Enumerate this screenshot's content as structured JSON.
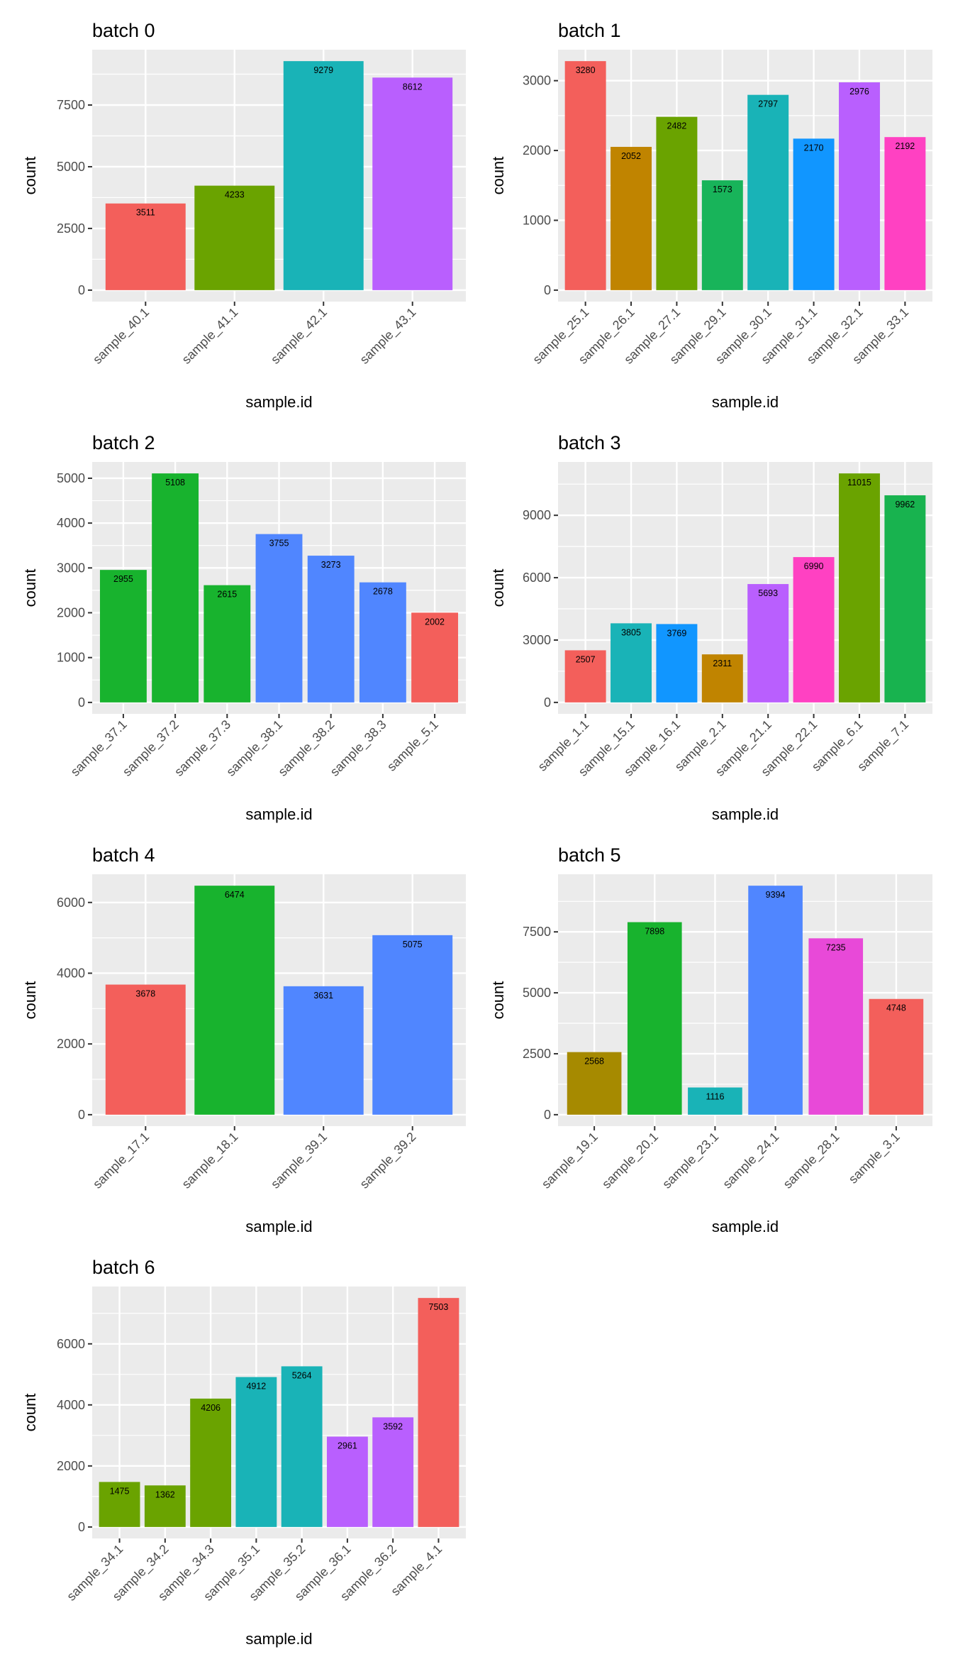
{
  "chart_data": [
    {
      "type": "bar",
      "title": "batch 0",
      "xlabel": "sample.id",
      "ylabel": "count",
      "categories": [
        "sample_40.1",
        "sample_41.1",
        "sample_42.1",
        "sample_43.1"
      ],
      "values": [
        3511,
        4233,
        9279,
        8612
      ],
      "colors": [
        "#F35F5B",
        "#6AA300",
        "#19B3B7",
        "#B95FFE"
      ],
      "yticks": [
        0,
        2500,
        5000,
        7500
      ],
      "ylim": [
        0,
        9279
      ],
      "grid": true
    },
    {
      "type": "bar",
      "title": "batch 1",
      "xlabel": "sample.id",
      "ylabel": "count",
      "categories": [
        "sample_25.1",
        "sample_26.1",
        "sample_27.1",
        "sample_29.1",
        "sample_30.1",
        "sample_31.1",
        "sample_32.1",
        "sample_33.1"
      ],
      "values": [
        3280,
        2052,
        2482,
        1573,
        2797,
        2170,
        2976,
        2192
      ],
      "colors": [
        "#F35F5B",
        "#C08400",
        "#6AA300",
        "#18B45A",
        "#19B3B7",
        "#1196FF",
        "#B95FFE",
        "#FF41C2"
      ],
      "yticks": [
        0,
        1000,
        2000,
        3000
      ],
      "ylim": [
        0,
        3280
      ],
      "grid": true
    },
    {
      "type": "bar",
      "title": "batch 2",
      "xlabel": "sample.id",
      "ylabel": "count",
      "categories": [
        "sample_37.1",
        "sample_37.2",
        "sample_37.3",
        "sample_38.1",
        "sample_38.2",
        "sample_38.3",
        "sample_5.1"
      ],
      "values": [
        2955,
        5108,
        2615,
        3755,
        3273,
        2678,
        2002
      ],
      "colors": [
        "#18B32E",
        "#18B32E",
        "#18B32E",
        "#5086FF",
        "#5086FF",
        "#5086FF",
        "#F35F5B"
      ],
      "yticks": [
        0,
        1000,
        2000,
        3000,
        4000,
        5000
      ],
      "ylim": [
        0,
        5108
      ],
      "grid": true
    },
    {
      "type": "bar",
      "title": "batch 3",
      "xlabel": "sample.id",
      "ylabel": "count",
      "categories": [
        "sample_1.1",
        "sample_15.1",
        "sample_16.1",
        "sample_2.1",
        "sample_21.1",
        "sample_22.1",
        "sample_6.1",
        "sample_7.1"
      ],
      "values": [
        2507,
        3805,
        3769,
        2311,
        5693,
        6990,
        11015,
        9962
      ],
      "colors": [
        "#F35F5B",
        "#19B3B7",
        "#1196FF",
        "#C08400",
        "#B95FFE",
        "#FF41C2",
        "#6AA300",
        "#18B34F"
      ],
      "yticks": [
        0,
        3000,
        6000,
        9000
      ],
      "ylim": [
        0,
        11015
      ],
      "grid": true
    },
    {
      "type": "bar",
      "title": "batch 4",
      "xlabel": "sample.id",
      "ylabel": "count",
      "categories": [
        "sample_17.1",
        "sample_18.1",
        "sample_39.1",
        "sample_39.2"
      ],
      "values": [
        3678,
        6474,
        3631,
        5075
      ],
      "colors": [
        "#F35F5B",
        "#18B32E",
        "#5086FF",
        "#5086FF"
      ],
      "yticks": [
        0,
        2000,
        4000,
        6000
      ],
      "ylim": [
        0,
        6474
      ],
      "grid": true
    },
    {
      "type": "bar",
      "title": "batch 5",
      "xlabel": "sample.id",
      "ylabel": "count",
      "categories": [
        "sample_19.1",
        "sample_20.1",
        "sample_23.1",
        "sample_24.1",
        "sample_28.1",
        "sample_3.1"
      ],
      "values": [
        2568,
        7898,
        1116,
        9394,
        7235,
        4748
      ],
      "colors": [
        "#A68A00",
        "#18B32E",
        "#19B3B7",
        "#5086FF",
        "#E849D8",
        "#F35F5B"
      ],
      "yticks": [
        0,
        2500,
        5000,
        7500
      ],
      "ylim": [
        0,
        9394
      ],
      "grid": true
    },
    {
      "type": "bar",
      "title": "batch 6",
      "xlabel": "sample.id",
      "ylabel": "count",
      "categories": [
        "sample_34.1",
        "sample_34.2",
        "sample_34.3",
        "sample_35.1",
        "sample_35.2",
        "sample_36.1",
        "sample_36.2",
        "sample_4.1"
      ],
      "values": [
        1475,
        1362,
        4206,
        4912,
        5264,
        2961,
        3592,
        7503
      ],
      "colors": [
        "#6AA300",
        "#6AA300",
        "#6AA300",
        "#19B3B7",
        "#19B3B7",
        "#B95FFE",
        "#B95FFE",
        "#F35F5B"
      ],
      "yticks": [
        0,
        2000,
        4000,
        6000
      ],
      "ylim": [
        0,
        7503
      ],
      "grid": true
    }
  ]
}
